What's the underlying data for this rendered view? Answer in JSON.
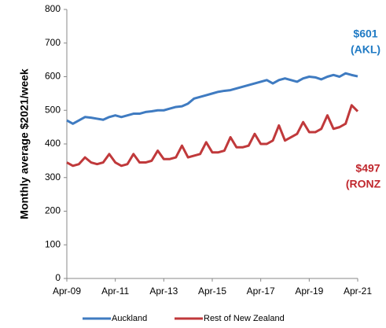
{
  "chart_data": {
    "type": "line",
    "y_label": "Monthly average $2021/week",
    "x": [
      "Apr-09",
      "Jul-09",
      "Oct-09",
      "Jan-10",
      "Apr-10",
      "Jul-10",
      "Oct-10",
      "Jan-11",
      "Apr-11",
      "Jul-11",
      "Oct-11",
      "Jan-12",
      "Apr-12",
      "Jul-12",
      "Oct-12",
      "Jan-13",
      "Apr-13",
      "Jul-13",
      "Oct-13",
      "Jan-14",
      "Apr-14",
      "Jul-14",
      "Oct-14",
      "Jan-15",
      "Apr-15",
      "Jul-15",
      "Oct-15",
      "Jan-16",
      "Apr-16",
      "Jul-16",
      "Oct-16",
      "Jan-17",
      "Apr-17",
      "Jul-17",
      "Oct-17",
      "Jan-18",
      "Apr-18",
      "Jul-18",
      "Oct-18",
      "Jan-19",
      "Apr-19",
      "Jul-19",
      "Oct-19",
      "Jan-20",
      "Apr-20",
      "Jul-20",
      "Oct-20",
      "Jan-21",
      "Apr-21"
    ],
    "xticks": [
      "Apr-09",
      "Apr-11",
      "Apr-13",
      "Apr-15",
      "Apr-17",
      "Apr-19",
      "Apr-21"
    ],
    "ylim": [
      0,
      800
    ],
    "yticks": [
      0,
      100,
      200,
      300,
      400,
      500,
      600,
      700,
      800
    ],
    "grid": false,
    "series": [
      {
        "name": "Auckland",
        "color": "#3f7bc1",
        "values": [
          470,
          460,
          470,
          480,
          478,
          475,
          472,
          480,
          485,
          480,
          485,
          490,
          490,
          495,
          497,
          500,
          500,
          505,
          510,
          512,
          520,
          535,
          540,
          545,
          550,
          555,
          558,
          560,
          565,
          570,
          575,
          580,
          585,
          590,
          580,
          590,
          595,
          590,
          585,
          595,
          600,
          598,
          592,
          600,
          605,
          600,
          610,
          605,
          601
        ]
      },
      {
        "name": "Rest of New Zealand",
        "color": "#c0393b",
        "values": [
          345,
          335,
          340,
          360,
          345,
          340,
          345,
          370,
          345,
          335,
          340,
          370,
          345,
          345,
          350,
          380,
          355,
          355,
          360,
          395,
          360,
          365,
          370,
          405,
          375,
          375,
          380,
          420,
          390,
          390,
          395,
          430,
          400,
          400,
          410,
          455,
          410,
          420,
          430,
          465,
          435,
          435,
          445,
          485,
          445,
          450,
          460,
          515,
          497
        ]
      }
    ],
    "annotations": [
      {
        "text": "$601",
        "color": "#1f7ac4"
      },
      {
        "text": "(AKL)",
        "color": "#1f7ac4"
      },
      {
        "text": "$497",
        "color": "#c0272d"
      },
      {
        "text": "(RONZ",
        "color": "#c0272d"
      }
    ]
  }
}
